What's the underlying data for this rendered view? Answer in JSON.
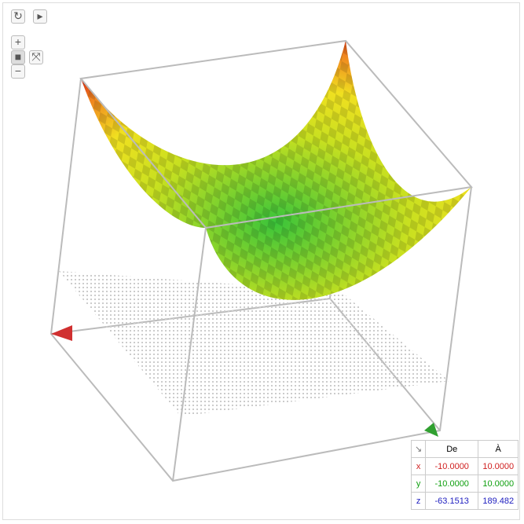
{
  "zoom": {
    "plus": "+",
    "minus": "−"
  },
  "range_table": {
    "corner": "↘",
    "headers": [
      "De",
      "À"
    ],
    "rows": [
      [
        "x",
        "-10.0000",
        "10.0000"
      ],
      [
        "y",
        "-10.0000",
        "10.0000"
      ],
      [
        "z",
        "-63.1513",
        "189.482"
      ]
    ]
  }
}
